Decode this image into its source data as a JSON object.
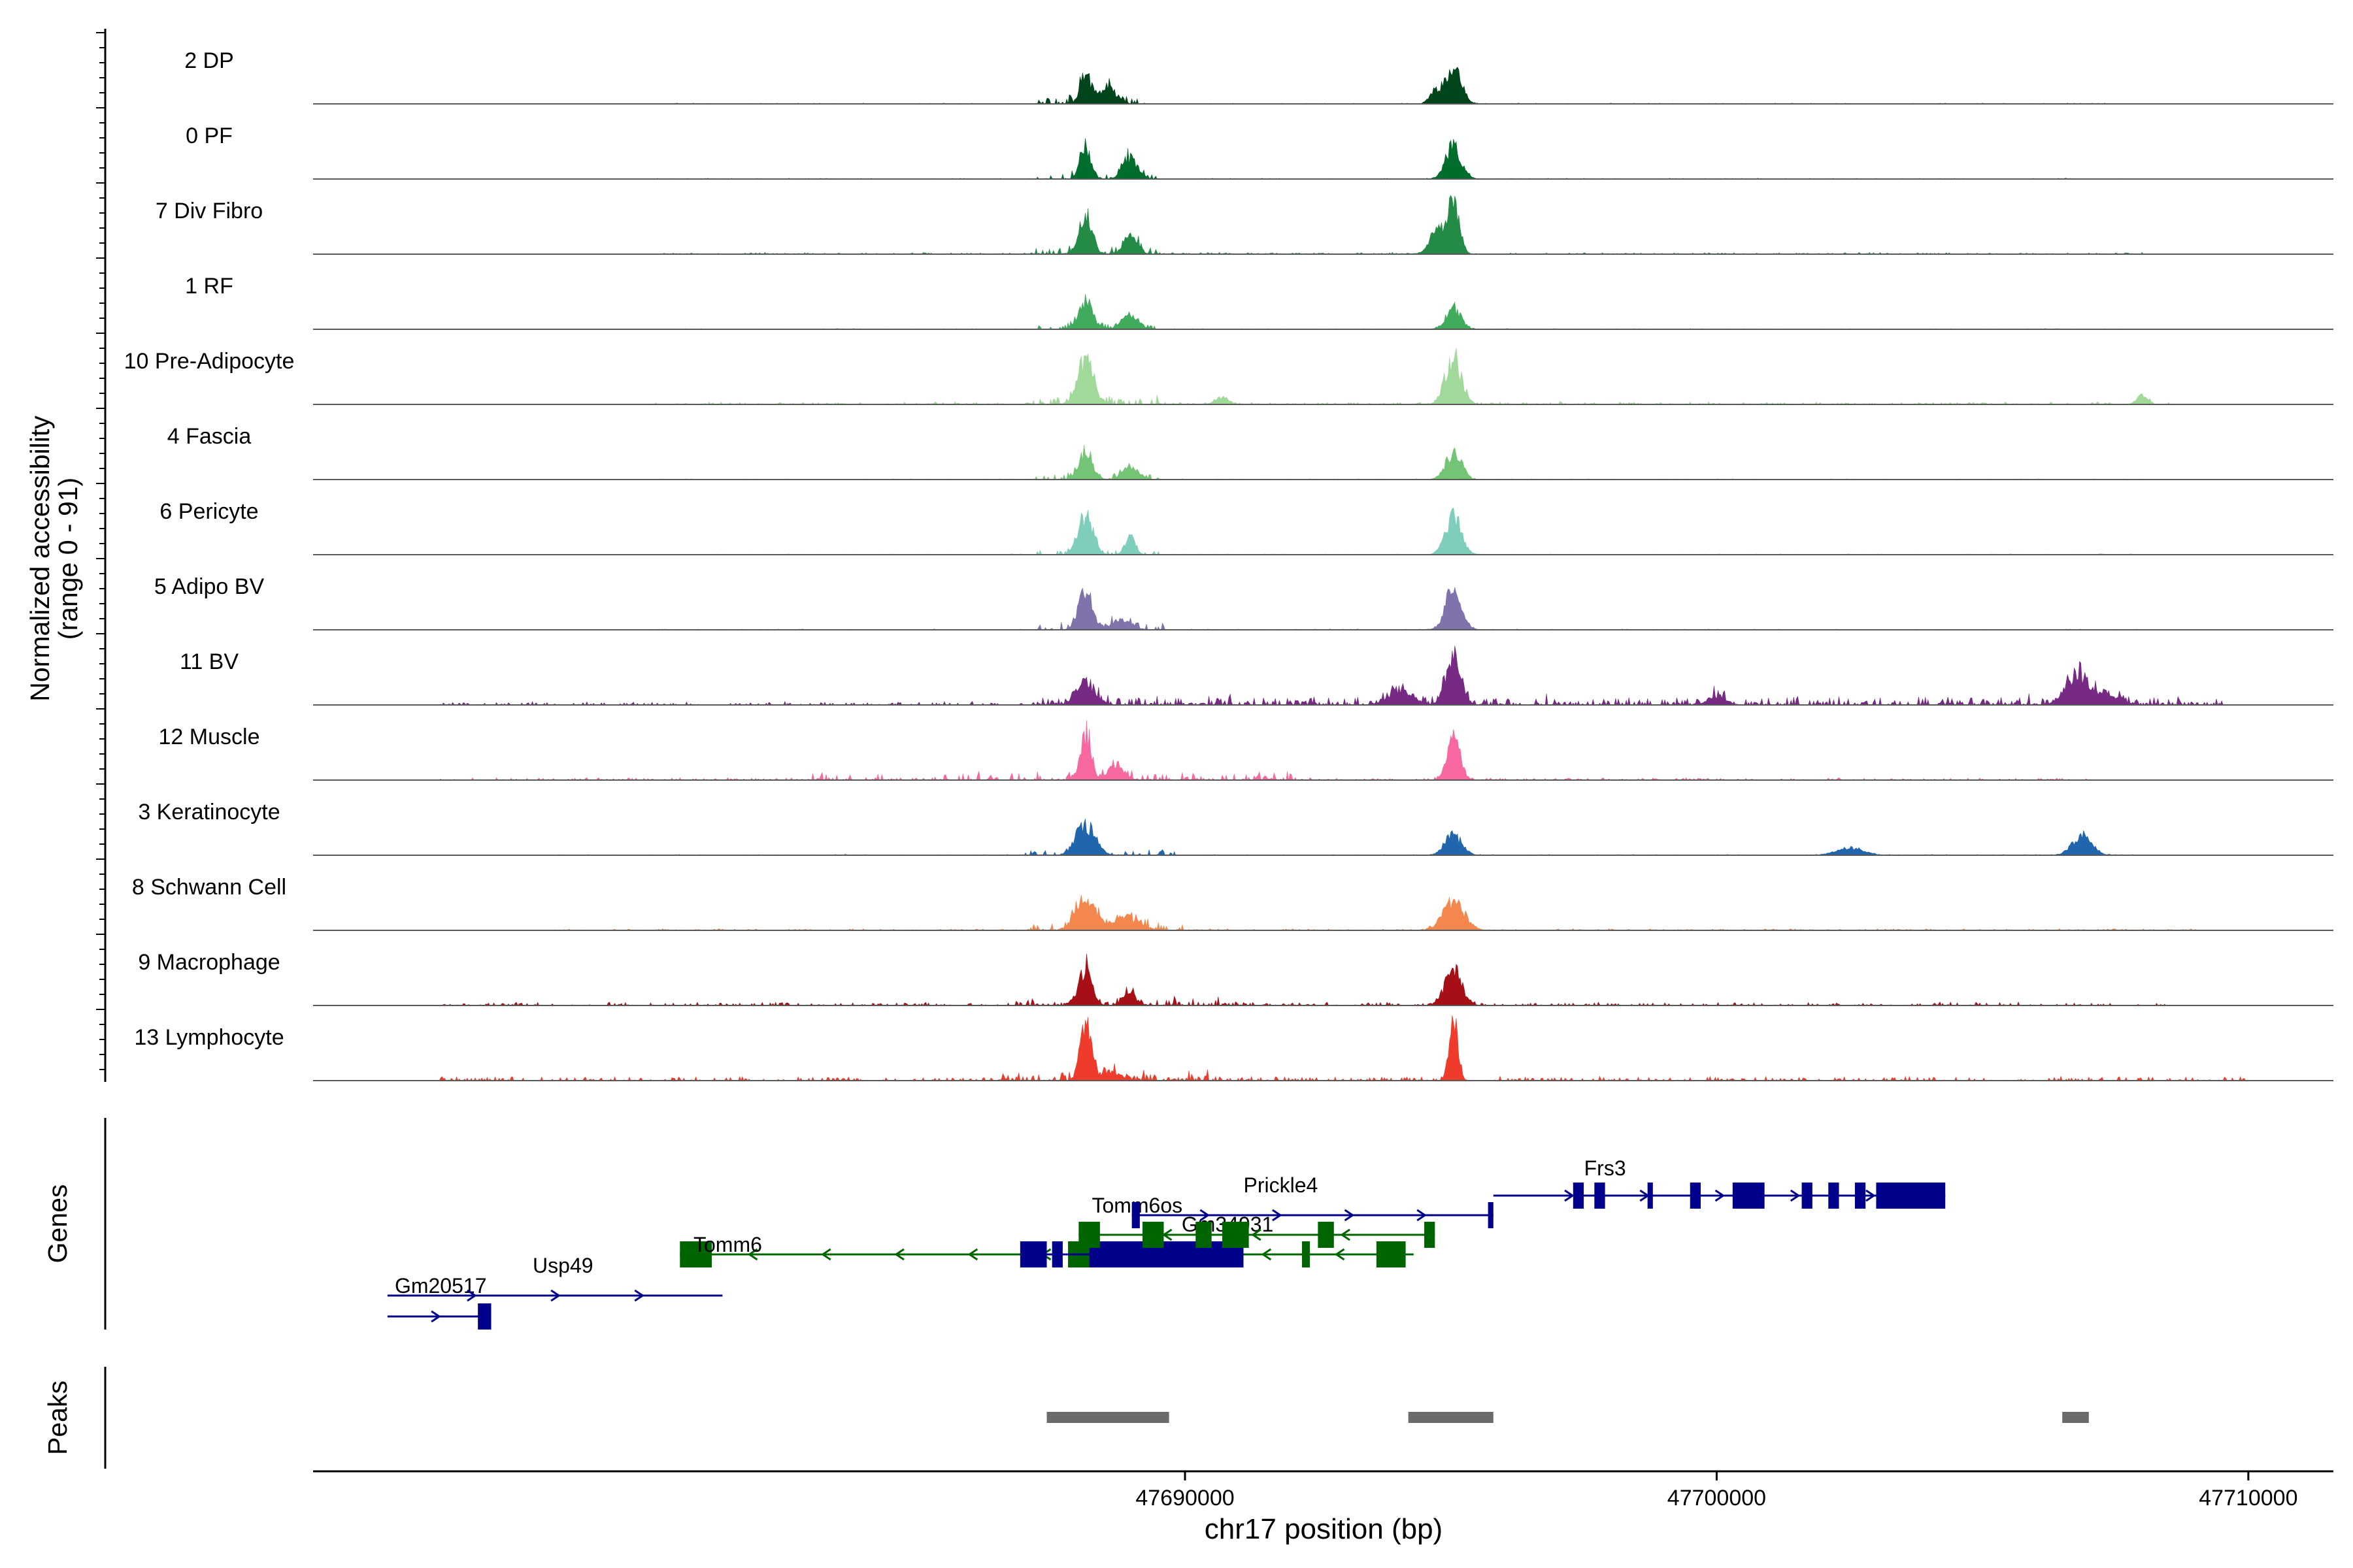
{
  "chart_data": {
    "type": "area",
    "title": "",
    "ylabel": "Normalized accessibility",
    "ylabel_range": "(range 0 - 91)",
    "xlabel": "chr17 position (bp)",
    "xlim": [
      47673600,
      47711600
    ],
    "ylim": [
      0,
      91
    ],
    "x_ticks": [
      47690000,
      47700000,
      47710000
    ],
    "x_tick_labels": [
      "47690000",
      "47700000",
      "47710000"
    ],
    "tracks": [
      {
        "name": "2 DP",
        "color": "#00441b",
        "peaks": [
          [
            47688130,
            40,
            100
          ],
          [
            47688550,
            22,
            160
          ],
          [
            47695050,
            48,
            150
          ],
          [
            47694700,
            18,
            100
          ]
        ],
        "noise": [
          [
            47687200,
            47689300,
            10
          ],
          [
            47680000,
            47708000,
            1
          ]
        ]
      },
      {
        "name": "0 PF",
        "color": "#006d2c",
        "peaks": [
          [
            47688130,
            44,
            100
          ],
          [
            47688970,
            28,
            140
          ],
          [
            47695050,
            44,
            150
          ]
        ],
        "noise": [
          [
            47687200,
            47689500,
            8
          ],
          [
            47680000,
            47708000,
            1
          ]
        ]
      },
      {
        "name": "7 Div Fibro",
        "color": "#238b45",
        "peaks": [
          [
            47688130,
            52,
            120
          ],
          [
            47688970,
            26,
            120
          ],
          [
            47695050,
            70,
            110
          ],
          [
            47694750,
            30,
            150
          ]
        ],
        "noise": [
          [
            47687200,
            47689500,
            10
          ],
          [
            47680000,
            47708000,
            2
          ]
        ]
      },
      {
        "name": "1 RF",
        "color": "#41ab5d",
        "peaks": [
          [
            47688130,
            38,
            130
          ],
          [
            47688970,
            20,
            150
          ],
          [
            47695050,
            30,
            140
          ]
        ],
        "noise": [
          [
            47687200,
            47689500,
            6
          ],
          [
            47680000,
            47708000,
            1
          ]
        ]
      },
      {
        "name": "10 Pre-Adipocyte",
        "color": "#a1d99b",
        "peaks": [
          [
            47688130,
            58,
            150
          ],
          [
            47695050,
            66,
            150
          ],
          [
            47690700,
            10,
            130
          ],
          [
            47708000,
            12,
            100
          ]
        ],
        "noise": [
          [
            47687000,
            47689500,
            12
          ],
          [
            47680000,
            47708500,
            3
          ]
        ]
      },
      {
        "name": "4 Fascia",
        "color": "#74c476",
        "peaks": [
          [
            47688130,
            38,
            130
          ],
          [
            47688970,
            18,
            150
          ],
          [
            47695050,
            36,
            150
          ]
        ],
        "noise": [
          [
            47687200,
            47689500,
            6
          ],
          [
            47680000,
            47708000,
            1
          ]
        ]
      },
      {
        "name": "6 Pericyte",
        "color": "#7fcdbb",
        "peaks": [
          [
            47688130,
            54,
            140
          ],
          [
            47688970,
            30,
            90
          ],
          [
            47695050,
            54,
            150
          ]
        ],
        "noise": [
          [
            47687200,
            47689500,
            6
          ],
          [
            47680000,
            47708000,
            1
          ]
        ]
      },
      {
        "name": "5 Adipo BV",
        "color": "#8073ac",
        "peaks": [
          [
            47688130,
            56,
            130
          ],
          [
            47688800,
            14,
            180
          ],
          [
            47695050,
            56,
            150
          ]
        ],
        "noise": [
          [
            47687200,
            47689600,
            8
          ],
          [
            47680000,
            47708000,
            1
          ]
        ]
      },
      {
        "name": "11 BV",
        "color": "#762a83",
        "peaks": [
          [
            47688130,
            30,
            180
          ],
          [
            47695050,
            64,
            140
          ],
          [
            47694050,
            22,
            220
          ],
          [
            47706800,
            44,
            220
          ],
          [
            47707400,
            12,
            200
          ],
          [
            47700000,
            10,
            180
          ]
        ],
        "noise": [
          [
            47687000,
            47709500,
            10
          ],
          [
            47676000,
            47709500,
            4
          ]
        ]
      },
      {
        "name": "12 Muscle",
        "color": "#f768a1",
        "peaks": [
          [
            47688130,
            64,
            100
          ],
          [
            47695050,
            62,
            120
          ],
          [
            47688700,
            18,
            160
          ]
        ],
        "noise": [
          [
            47683000,
            47692000,
            10
          ],
          [
            47676000,
            47707000,
            3
          ]
        ]
      },
      {
        "name": "3 Keratinocyte",
        "color": "#2166ac",
        "peaks": [
          [
            47688130,
            40,
            180
          ],
          [
            47695050,
            28,
            160
          ],
          [
            47706880,
            28,
            180
          ],
          [
            47702500,
            10,
            250
          ]
        ],
        "noise": [
          [
            47687000,
            47689800,
            6
          ],
          [
            47678000,
            47708000,
            1
          ]
        ]
      },
      {
        "name": "8 Schwann Cell",
        "color": "#f4874d",
        "peaks": [
          [
            47688130,
            44,
            190
          ],
          [
            47688900,
            18,
            220
          ],
          [
            47695050,
            40,
            200
          ]
        ],
        "noise": [
          [
            47687000,
            47690000,
            10
          ],
          [
            47678000,
            47709000,
            2
          ]
        ]
      },
      {
        "name": "9 Macrophage",
        "color": "#a50f15",
        "peaks": [
          [
            47688130,
            52,
            120
          ],
          [
            47688950,
            18,
            120
          ],
          [
            47695050,
            48,
            160
          ]
        ],
        "noise": [
          [
            47686800,
            47691000,
            8
          ],
          [
            47676000,
            47708500,
            4
          ]
        ]
      },
      {
        "name": "13 Lymphocyte",
        "color": "#ef3b2c",
        "peaks": [
          [
            47688130,
            80,
            100
          ],
          [
            47695050,
            90,
            80
          ],
          [
            47688600,
            12,
            200
          ]
        ],
        "noise": [
          [
            47686500,
            47690500,
            10
          ],
          [
            47676000,
            47710000,
            5
          ]
        ]
      }
    ],
    "genes_panel_label": "Genes",
    "genes": [
      {
        "name": "Gm20517",
        "strand": "+",
        "row": 6,
        "color": "#00008b",
        "start": 47675000,
        "end": 47676800,
        "exons": [
          [
            47676700,
            47676950,
            "tall"
          ]
        ],
        "label_x": 47676000
      },
      {
        "name": "Usp49",
        "strand": "+",
        "row": 5,
        "color": "#00008b",
        "start": 47675000,
        "end": 47681300,
        "exons": [],
        "label_x": 47678300
      },
      {
        "name": "Tomm6",
        "strand": "-",
        "row": 4,
        "color": "#006400",
        "start": 47680500,
        "end": 47694300,
        "exons": [
          [
            47680500,
            47681100,
            "tall"
          ],
          [
            47687800,
            47688300,
            "tall"
          ],
          [
            47689000,
            47689400,
            "short"
          ],
          [
            47690200,
            47690400,
            "short"
          ],
          [
            47690800,
            47691000,
            "short"
          ],
          [
            47692200,
            47692350,
            "short"
          ],
          [
            47693600,
            47694150,
            "tall"
          ]
        ],
        "label_x": 47681400
      },
      {
        "name": "Gm34931",
        "strand": "+",
        "row": 3,
        "color": "#00008b",
        "start": 47686900,
        "end": 47691100,
        "exons": [
          [
            47686900,
            47687400,
            "tall"
          ],
          [
            47687500,
            47687700,
            "short"
          ],
          [
            47688200,
            47691100,
            "tall"
          ]
        ],
        "label_x": 47690800
      },
      {
        "name": "Tomm6os",
        "strand": "-",
        "row": 2,
        "color": "#006400",
        "start": 47688000,
        "end": 47694700,
        "exons": [
          [
            47688000,
            47688400,
            "tall"
          ],
          [
            47689200,
            47689600,
            "short"
          ],
          [
            47690200,
            47690500,
            "short"
          ],
          [
            47690700,
            47691200,
            "tall"
          ],
          [
            47692500,
            47692800,
            "short"
          ],
          [
            47694500,
            47694700,
            "short"
          ]
        ],
        "label_x": 47689100
      },
      {
        "name": "Prickle4",
        "strand": "+",
        "row": 1,
        "color": "#00008b",
        "start": 47689000,
        "end": 47695800,
        "exons": [
          [
            47689000,
            47689150,
            "short"
          ],
          [
            47695700,
            47695800,
            "short"
          ]
        ],
        "label_x": 47691800
      },
      {
        "name": "Frs3",
        "strand": "+",
        "row": 0,
        "color": "#00008b",
        "start": 47695800,
        "end": 47704300,
        "exons": [
          [
            47697300,
            47697500,
            "short"
          ],
          [
            47697700,
            47697900,
            "short"
          ],
          [
            47698700,
            47698800,
            "short"
          ],
          [
            47699500,
            47699700,
            "short"
          ],
          [
            47700300,
            47700900,
            "tall"
          ],
          [
            47701600,
            47701800,
            "short"
          ],
          [
            47702100,
            47702300,
            "short"
          ],
          [
            47702600,
            47702800,
            "short"
          ],
          [
            47703000,
            47704300,
            "tall"
          ]
        ],
        "label_x": 47697900
      }
    ],
    "peaks_panel_label": "Peaks",
    "peak_regions": [
      [
        47687400,
        47689700
      ],
      [
        47694200,
        47695800
      ],
      [
        47706500,
        47707000
      ]
    ],
    "colors": {
      "peak_bar": "#6b6b6b",
      "axis": "#000000",
      "baseline": "#595959"
    }
  }
}
